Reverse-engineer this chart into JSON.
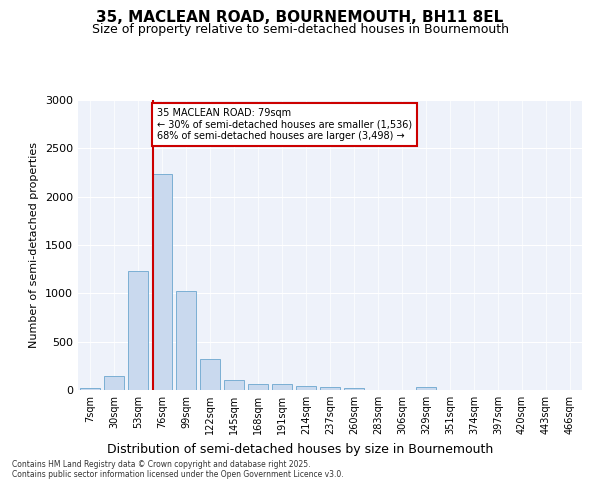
{
  "title": "35, MACLEAN ROAD, BOURNEMOUTH, BH11 8EL",
  "subtitle": "Size of property relative to semi-detached houses in Bournemouth",
  "xlabel": "Distribution of semi-detached houses by size in Bournemouth",
  "ylabel": "Number of semi-detached properties",
  "bar_labels": [
    "7sqm",
    "30sqm",
    "53sqm",
    "76sqm",
    "99sqm",
    "122sqm",
    "145sqm",
    "168sqm",
    "191sqm",
    "214sqm",
    "237sqm",
    "260sqm",
    "283sqm",
    "306sqm",
    "329sqm",
    "351sqm",
    "374sqm",
    "397sqm",
    "420sqm",
    "443sqm",
    "466sqm"
  ],
  "bar_values": [
    20,
    150,
    1230,
    2230,
    1020,
    320,
    100,
    60,
    60,
    40,
    30,
    20,
    5,
    0,
    30,
    0,
    0,
    0,
    0,
    0,
    0
  ],
  "bar_color": "#c9d9ee",
  "bar_edge_color": "#7bafd4",
  "background_color": "#eef2fa",
  "grid_color": "#ffffff",
  "property_size": "79sqm",
  "property_name": "35 MACLEAN ROAD",
  "pct_smaller": 30,
  "pct_larger": 68,
  "n_smaller": 1536,
  "n_larger": 3498,
  "annotation_box_color": "#ffffff",
  "annotation_box_edge": "#cc0000",
  "red_line_color": "#cc0000",
  "ylim": [
    0,
    3000
  ],
  "yticks": [
    0,
    500,
    1000,
    1500,
    2000,
    2500,
    3000
  ],
  "footer1": "Contains HM Land Registry data © Crown copyright and database right 2025.",
  "footer2": "Contains public sector information licensed under the Open Government Licence v3.0.",
  "title_fontsize": 11,
  "subtitle_fontsize": 9,
  "tick_fontsize": 7,
  "ylabel_fontsize": 8,
  "xlabel_fontsize": 9,
  "annotation_fontsize": 7,
  "footer_fontsize": 5.5
}
